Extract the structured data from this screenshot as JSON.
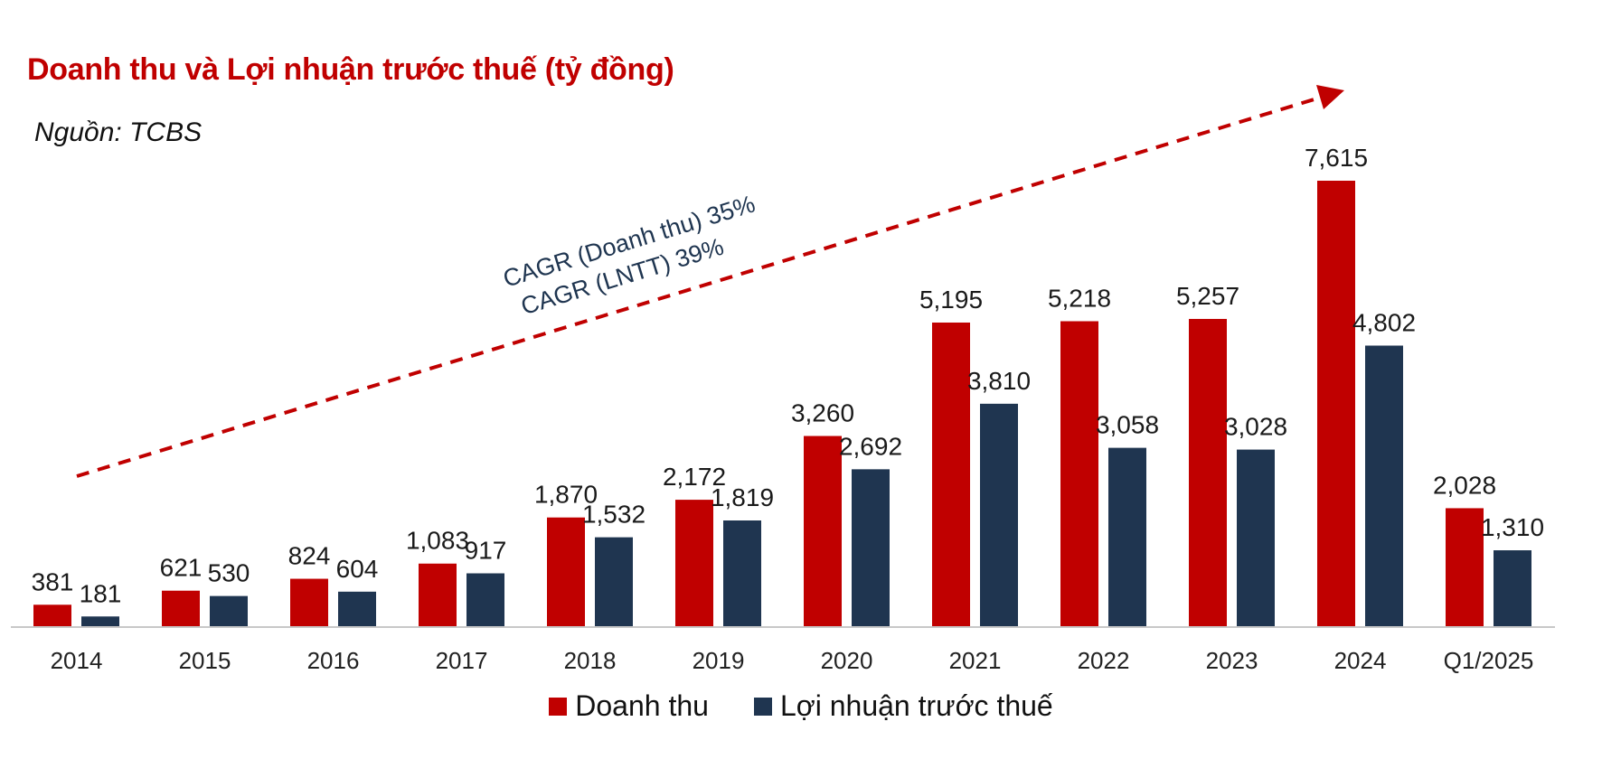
{
  "title": "Doanh thu và Lợi nhuận trước thuế (tỷ đồng)",
  "source": "Nguồn: TCBS",
  "annotation": {
    "line1": "CAGR (Doanh thu) 35%",
    "line2": "CAGR (LNTT) 39%"
  },
  "chart_data": {
    "type": "bar",
    "title": "Doanh thu và Lợi nhuận trước thuế (tỷ đồng)",
    "xlabel": "",
    "ylabel": "",
    "ylim": [
      0,
      7615
    ],
    "categories": [
      "2014",
      "2015",
      "2016",
      "2017",
      "2018",
      "2019",
      "2020",
      "2021",
      "2022",
      "2023",
      "2024",
      "Q1/2025"
    ],
    "series": [
      {
        "name": "Doanh thu",
        "color": "#c00000",
        "values": [
          381,
          621,
          824,
          1083,
          1870,
          2172,
          3260,
          5195,
          5218,
          5257,
          7615,
          2028
        ],
        "labels": [
          "381",
          "621",
          "824",
          "1,083",
          "1,870",
          "2,172",
          "3,260",
          "5,195",
          "5,218",
          "5,257",
          "7,615",
          "2,028"
        ]
      },
      {
        "name": "Lợi nhuận trước thuế",
        "color": "#1f3550",
        "values": [
          181,
          530,
          604,
          917,
          1532,
          1819,
          2692,
          3810,
          3058,
          3028,
          4802,
          1310
        ],
        "labels": [
          "181",
          "530",
          "604",
          "917",
          "1,532",
          "1,819",
          "2,692",
          "3,810",
          "3,058",
          "3,028",
          "4,802",
          "1,310"
        ]
      }
    ],
    "legend_position": "bottom"
  }
}
